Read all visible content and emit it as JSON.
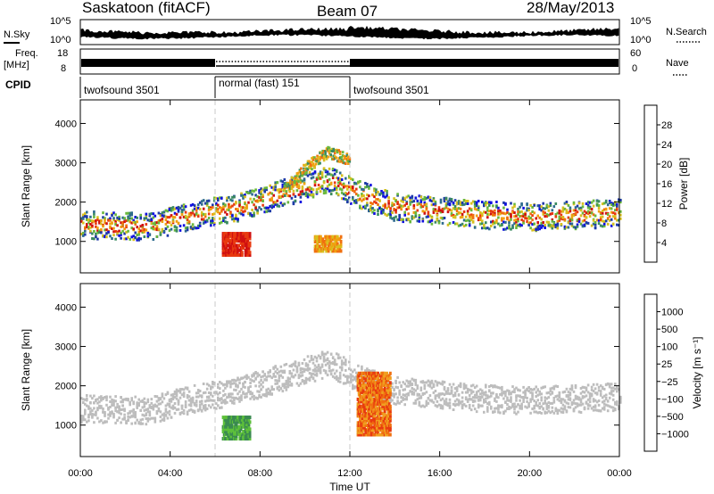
{
  "header": {
    "station": "Saskatoon (fitACF)",
    "beam": "Beam 07",
    "date": "28/May/2013"
  },
  "strip_labels": {
    "nsky": "N.Sky",
    "nsearch": "N.Search",
    "freq_line1": "Freq.",
    "freq_line2": "[MHz]",
    "nave": "Nave",
    "cpid": "CPID",
    "noise_ticks_left": [
      "10^5",
      "10^0"
    ],
    "noise_ticks_right": [
      "10^5",
      "10^0"
    ],
    "freq_ticks_left": [
      "18",
      "8"
    ],
    "nave_ticks_right": [
      "60",
      "0"
    ]
  },
  "cpid_segments": [
    {
      "label": "twofsound 3501",
      "start_hour": 0,
      "end_hour": 6
    },
    {
      "label": "normal (fast) 151",
      "start_hour": 6,
      "end_hour": 12
    },
    {
      "label": "twofsound 3501",
      "start_hour": 12,
      "end_hour": 24
    }
  ],
  "colors": {
    "power_scale": [
      "#1010e0",
      "#1e3aa8",
      "#2e6b8e",
      "#3a8a60",
      "#6ab83c",
      "#d8c020",
      "#f0a010",
      "#f07010",
      "#e83a10",
      "#d01010"
    ],
    "velocity_scale": [
      "#2020c0",
      "#1d6e9a",
      "#3a8a50",
      "#5dc03a",
      "#bdbdbd",
      "#bdbdbd",
      "#f0a020",
      "#f07010",
      "#e83a10",
      "#e01010"
    ],
    "grid_dash": "#c0c0c0"
  },
  "chart_data": [
    {
      "type": "heatmap",
      "name": "power",
      "xlabel": "",
      "ylabel": "Slant Range [km]",
      "xlim": [
        0,
        24
      ],
      "ylim": [
        200,
        4600
      ],
      "x_ticks": [
        0,
        4,
        8,
        12,
        16,
        20,
        24
      ],
      "y_ticks": [
        1000,
        2000,
        3000,
        4000
      ],
      "colorbar": {
        "label": "Power [dB]",
        "range": [
          0,
          32
        ],
        "tick_labels": [
          "4",
          "8",
          "12",
          "16",
          "20",
          "24",
          "28"
        ]
      },
      "features": [
        {
          "kind": "band",
          "hours": [
            0,
            3,
            5,
            7,
            9,
            11,
            12.5,
            14,
            16,
            18,
            20,
            22,
            24
          ],
          "range_km": [
            1450,
            1400,
            1700,
            1900,
            2250,
            2600,
            2200,
            1900,
            1800,
            1700,
            1650,
            1700,
            1750
          ],
          "value_db": 20
        },
        {
          "kind": "blob",
          "hour_range": [
            6.3,
            7.5
          ],
          "range_km": [
            700,
            1300
          ],
          "value_db": 28
        },
        {
          "kind": "blob",
          "hour_range": [
            10.4,
            11.6
          ],
          "range_km": [
            800,
            1200
          ],
          "value_db": 18
        },
        {
          "kind": "arc",
          "hours": [
            9,
            10,
            11,
            12
          ],
          "range_km": [
            2300,
            2900,
            3300,
            3100
          ],
          "value_db": 22
        }
      ]
    },
    {
      "type": "heatmap",
      "name": "velocity",
      "xlabel": "Time UT",
      "ylabel": "Slant Range [km]",
      "xlim": [
        0,
        24
      ],
      "ylim": [
        200,
        4600
      ],
      "x_ticks": [
        0,
        4,
        8,
        12,
        16,
        20,
        24
      ],
      "x_tick_labels": [
        "00:00",
        "04:00",
        "08:00",
        "12:00",
        "16:00",
        "20:00",
        "00:00"
      ],
      "y_ticks": [
        1000,
        2000,
        3000,
        4000
      ],
      "colorbar": {
        "label": "Velocity [m s⁻¹]",
        "tick_labels": [
          "1000",
          "500",
          "100",
          "25",
          "−25",
          "−100",
          "−500",
          "−1000"
        ]
      },
      "features": [
        {
          "kind": "band",
          "hours": [
            0,
            3,
            5,
            7,
            9,
            11,
            12.5,
            14,
            16,
            18,
            20,
            22,
            24
          ],
          "range_km": [
            1450,
            1400,
            1700,
            1900,
            2250,
            2600,
            2200,
            1900,
            1800,
            1700,
            1650,
            1700,
            1750
          ],
          "value_ms": 0
        },
        {
          "kind": "blob",
          "hour_range": [
            6.3,
            7.5
          ],
          "range_km": [
            700,
            1300
          ],
          "value_ms": 250
        },
        {
          "kind": "blob",
          "hour_range": [
            12.3,
            13.8
          ],
          "range_km": [
            800,
            2400
          ],
          "value_ms": -400
        }
      ]
    }
  ]
}
